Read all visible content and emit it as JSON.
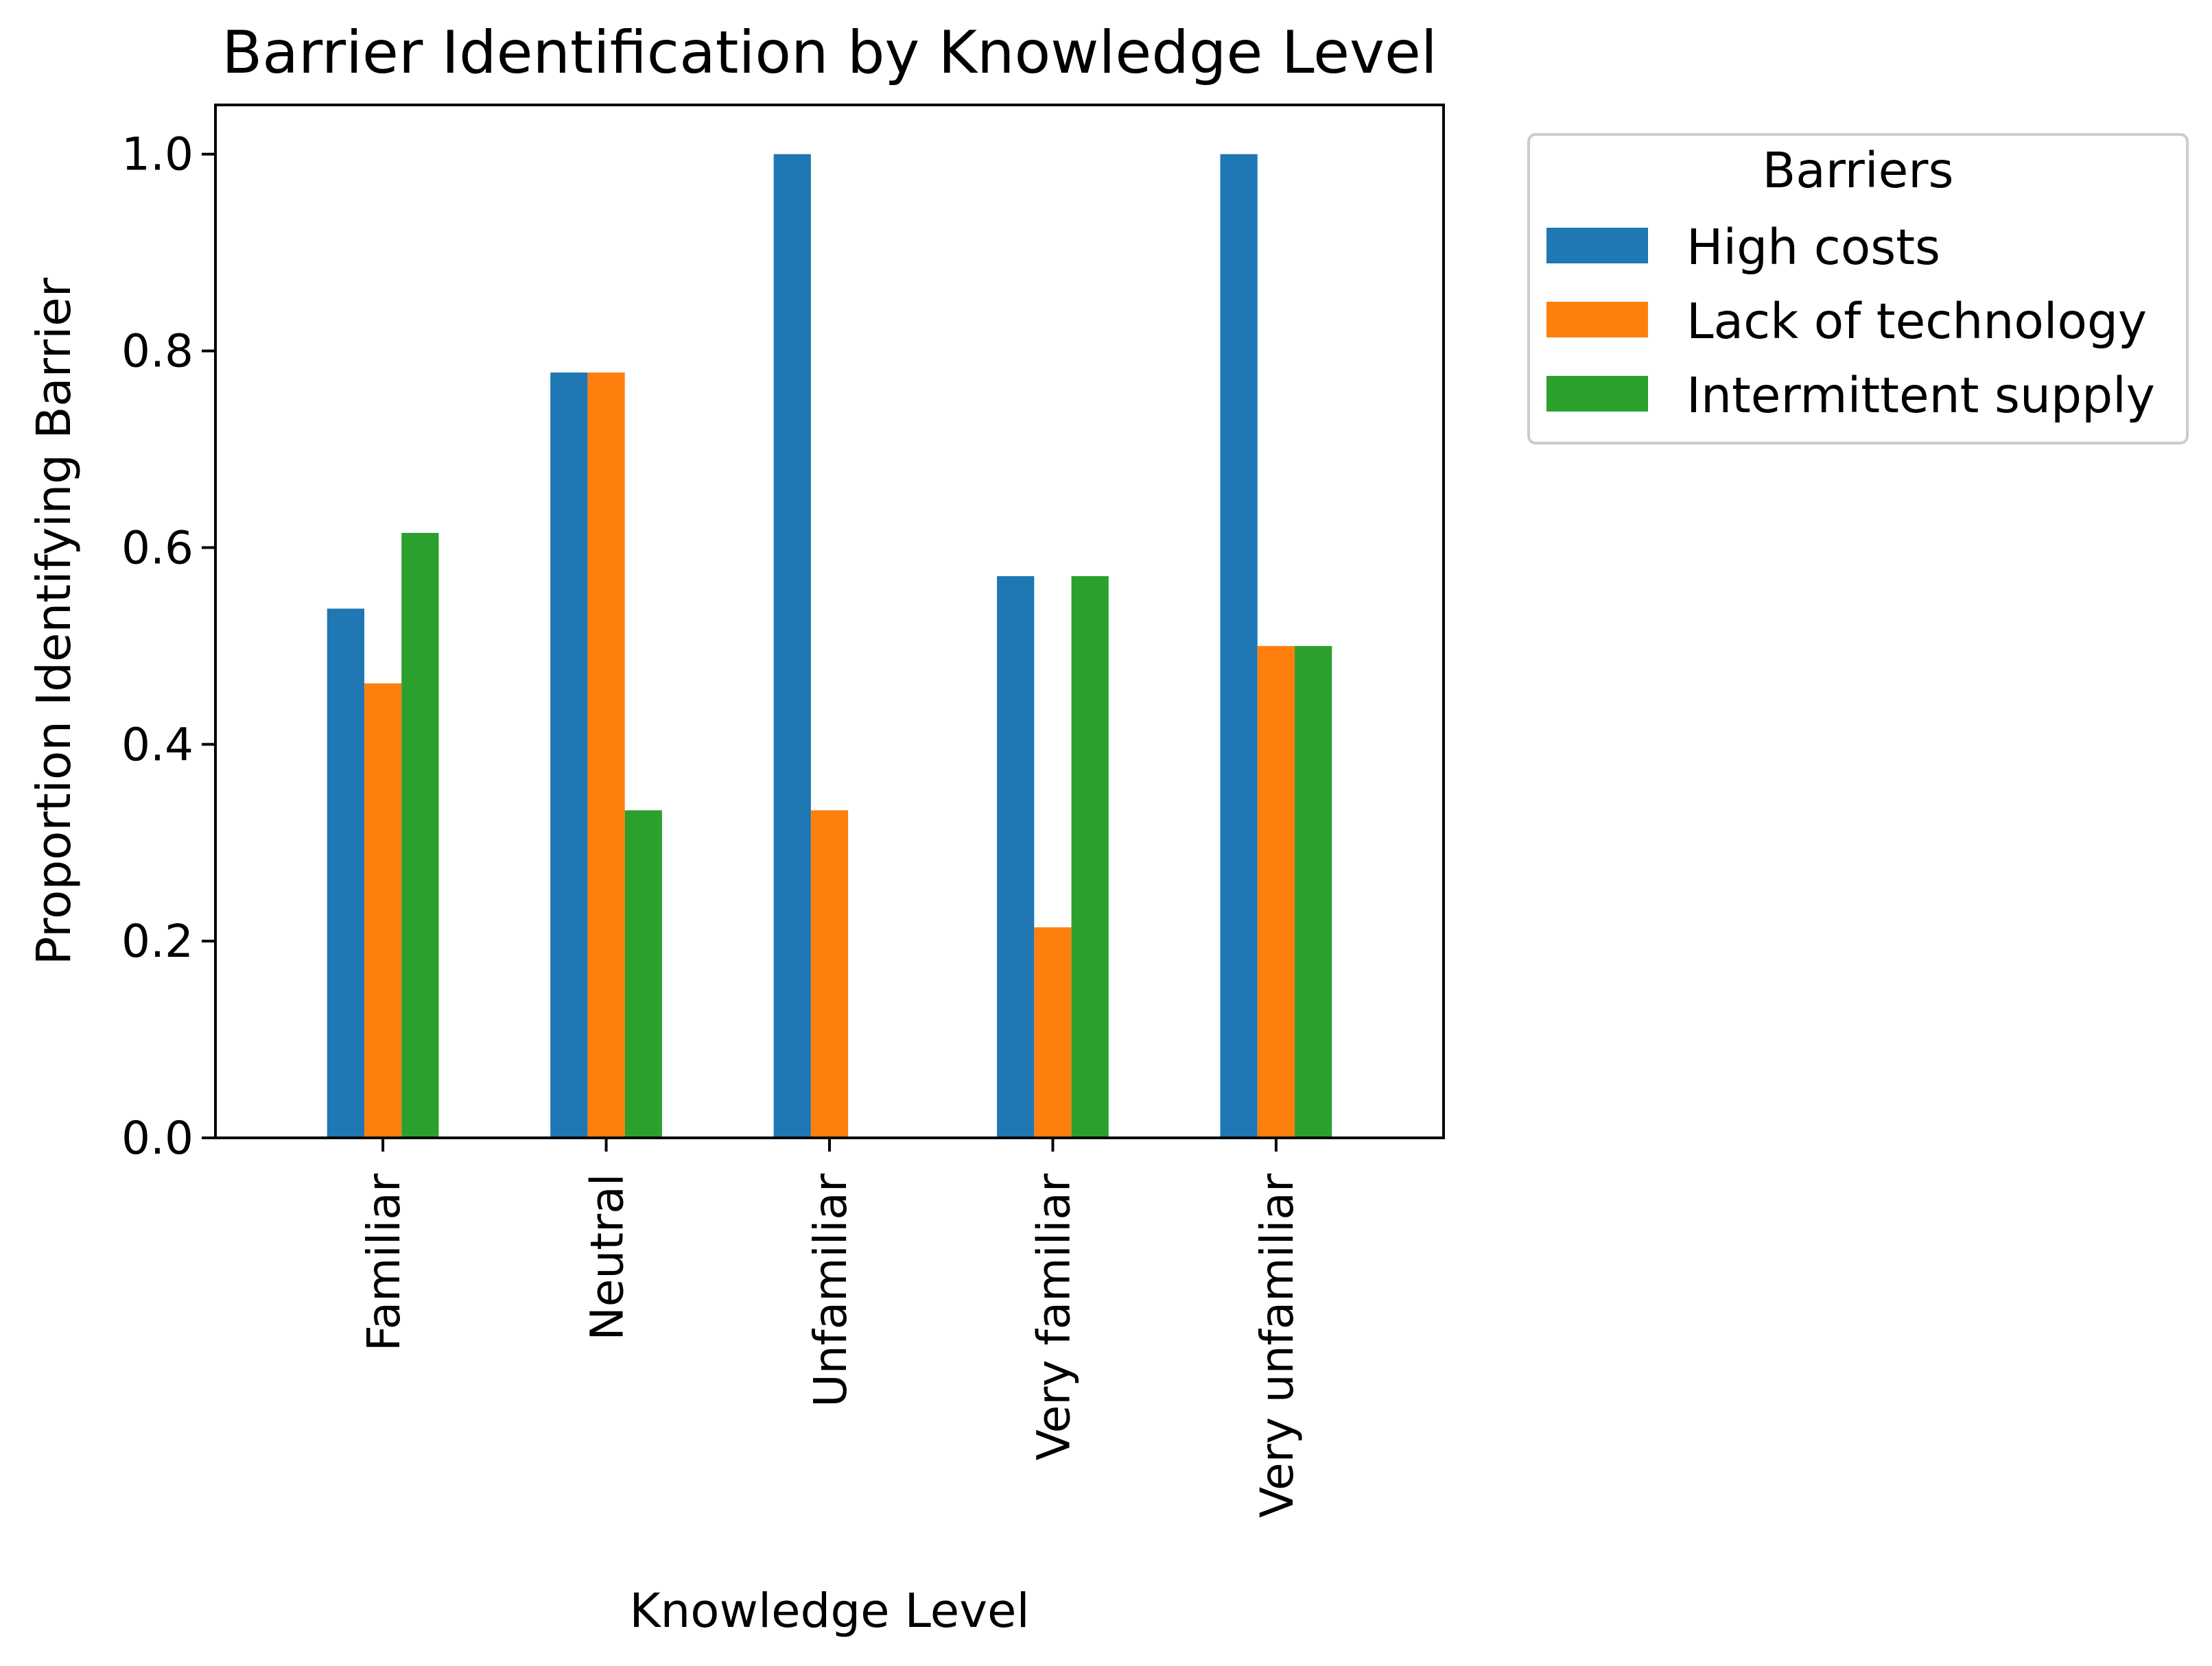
{
  "chart_data": {
    "type": "bar",
    "title": "Barrier Identification by Knowledge Level",
    "xlabel": "Knowledge Level",
    "ylabel": "Proportion Identifying Barrier",
    "categories": [
      "Familiar",
      "Neutral",
      "Unfamiliar",
      "Very familiar",
      "Very unfamiliar"
    ],
    "series": [
      {
        "name": "High costs",
        "color": "#1f77b4",
        "values": [
          0.538,
          0.778,
          1.0,
          0.571,
          1.0
        ]
      },
      {
        "name": "Lack of technology",
        "color": "#ff7f0e",
        "values": [
          0.462,
          0.778,
          0.333,
          0.214,
          0.5
        ]
      },
      {
        "name": "Intermittent supply",
        "color": "#2ca02c",
        "values": [
          0.615,
          0.333,
          0.0,
          0.571,
          0.5
        ]
      }
    ],
    "ylim": [
      0,
      1.05
    ],
    "yticks": [
      "0.0",
      "0.2",
      "0.4",
      "0.6",
      "0.8",
      "1.0"
    ],
    "grid": false,
    "legend": {
      "title": "Barriers",
      "placement": "outside-top-right"
    }
  }
}
